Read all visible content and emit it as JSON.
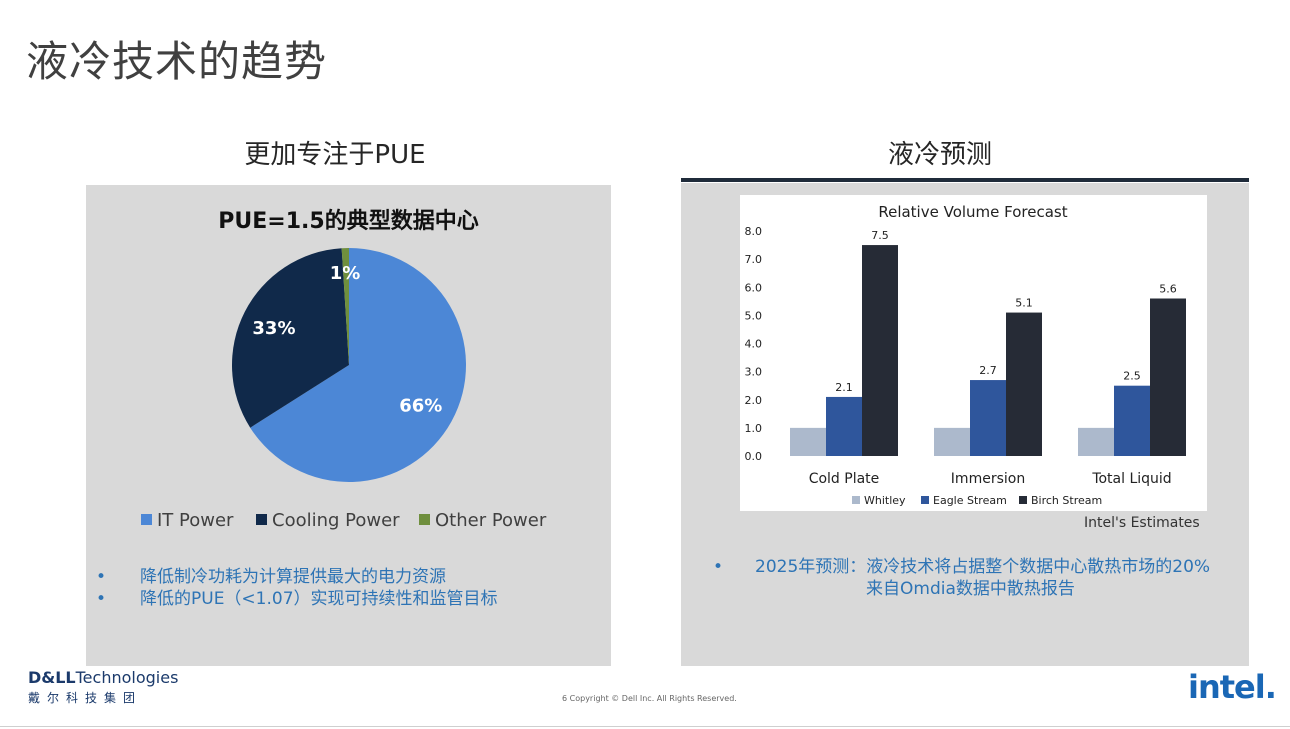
{
  "slide": {
    "title": "液冷技术的趋势"
  },
  "left": {
    "heading": "更加专注于PUE",
    "bullets": [
      "降低制冷功耗为计算提供最大的电力资源",
      "降低的PUE（<1.07）实现可持续性和监管目标"
    ]
  },
  "right": {
    "heading": "液冷预测",
    "estimates_note": "Intel's Estimates",
    "bullet": {
      "line1": "2025年预测：液冷技术将占据整个数据中心散热市场的20%",
      "line2": "来自Omdia数据中散热报告"
    }
  },
  "footer": {
    "brand_dell": "D&LL",
    "brand_technologies": "Technologies",
    "brand_sub": "戴尔科技集团",
    "copyright": "6  Copyright © Dell Inc. All Rights Reserved.",
    "intel": "intel."
  },
  "colors": {
    "it": "#4c87d6",
    "cooling": "#10294a",
    "other": "#6f8f3e",
    "whitley": "#acb9cc",
    "eagle": "#2f569c",
    "birch": "#262b36",
    "bullet_text": "#2e74b5"
  },
  "chart_data": [
    {
      "type": "pie",
      "title": "PUE=1.5的典型数据中心",
      "slices": [
        {
          "name": "IT Power",
          "value": 66,
          "label": "66%",
          "color": "#4c87d6"
        },
        {
          "name": "Cooling Power",
          "value": 33,
          "label": "33%",
          "color": "#10294a"
        },
        {
          "name": "Other Power",
          "value": 1,
          "label": "1%",
          "color": "#6f8f3e"
        }
      ],
      "legend": "bottom"
    },
    {
      "type": "bar",
      "title": "Relative Volume Forecast",
      "categories": [
        "Cold Plate",
        "Immersion",
        "Total Liquid"
      ],
      "series": [
        {
          "name": "Whitley",
          "values": [
            1.0,
            1.0,
            1.0
          ],
          "color": "#acb9cc",
          "labels": [
            "",
            "",
            ""
          ]
        },
        {
          "name": "Eagle Stream",
          "values": [
            2.1,
            2.7,
            2.5
          ],
          "color": "#2f569c",
          "labels": [
            "2.1",
            "2.7",
            "2.5"
          ]
        },
        {
          "name": "Birch Stream",
          "values": [
            7.5,
            5.1,
            5.6
          ],
          "color": "#262b36",
          "labels": [
            "7.5",
            "5.1",
            "5.6"
          ]
        }
      ],
      "ylim": [
        0,
        8
      ],
      "yticks": [
        "0.0",
        "1.0",
        "2.0",
        "3.0",
        "4.0",
        "5.0",
        "6.0",
        "7.0",
        "8.0"
      ],
      "grid": false,
      "legend": "bottom"
    }
  ]
}
